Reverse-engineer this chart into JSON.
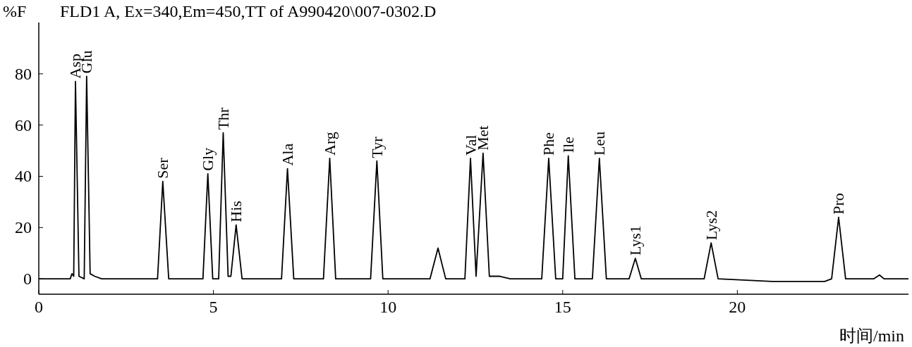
{
  "chart_data": {
    "type": "line",
    "title": "FLD1 A, Ex=340,Em=450,TT of A990420\\007-0302.D",
    "ylabel": "%F",
    "xlabel": "时间/min",
    "xlim": [
      0,
      24.9
    ],
    "ylim": [
      -6,
      100
    ],
    "xticks": [
      0,
      5,
      10,
      15,
      20
    ],
    "yticks": [
      0,
      20,
      40,
      60,
      80
    ],
    "series": [
      {
        "color": "#000000",
        "x": [
          0,
          0.9,
          0.95,
          1.0,
          1.05,
          1.15,
          1.3,
          1.37,
          1.47,
          1.6,
          1.8,
          3.4,
          3.55,
          3.72,
          4.7,
          4.84,
          4.98,
          5.15,
          5.28,
          5.42,
          5.5,
          5.65,
          5.82,
          6.95,
          7.12,
          7.3,
          8.15,
          8.33,
          8.5,
          9.5,
          9.68,
          9.85,
          11.2,
          11.43,
          11.65,
          12.2,
          12.36,
          12.52,
          12.72,
          12.9,
          13.2,
          13.5,
          14.4,
          14.6,
          14.8,
          15.0,
          15.16,
          15.35,
          15.85,
          16.05,
          16.25,
          16.9,
          17.08,
          17.25,
          19.05,
          19.25,
          19.45,
          21,
          22.5,
          22.7,
          22.9,
          23.1,
          23.9,
          24.07,
          24.2,
          24.9
        ],
        "values": [
          0,
          0,
          2,
          1,
          77,
          1,
          0,
          79,
          2,
          1,
          0,
          0,
          38,
          0,
          0,
          41,
          0,
          0,
          57,
          1,
          1,
          21,
          0,
          0,
          43,
          0,
          0,
          47,
          0,
          0,
          46,
          0,
          0,
          12,
          0,
          0,
          47,
          1,
          49,
          1,
          1,
          0,
          0,
          47,
          0,
          0,
          48,
          0,
          0,
          47,
          0,
          0,
          8,
          0,
          0,
          14,
          0,
          -1,
          -1,
          0,
          24,
          0,
          0,
          1.5,
          0,
          0
        ]
      }
    ],
    "annotations": [
      {
        "text": "Asp",
        "x": 1.05,
        "y": 77
      },
      {
        "text": "Glu",
        "x": 1.37,
        "y": 79
      },
      {
        "text": "Ser",
        "x": 3.55,
        "y": 38
      },
      {
        "text": "Gly",
        "x": 4.84,
        "y": 41
      },
      {
        "text": "Thr",
        "x": 5.28,
        "y": 57
      },
      {
        "text": "His",
        "x": 5.65,
        "y": 21
      },
      {
        "text": "Ala",
        "x": 7.12,
        "y": 43
      },
      {
        "text": "Arg",
        "x": 8.33,
        "y": 47
      },
      {
        "text": "Tyr",
        "x": 9.68,
        "y": 46
      },
      {
        "text": "Val",
        "x": 12.36,
        "y": 47
      },
      {
        "text": "Met",
        "x": 12.72,
        "y": 49
      },
      {
        "text": "Phe",
        "x": 14.6,
        "y": 47
      },
      {
        "text": "Ile",
        "x": 15.16,
        "y": 48
      },
      {
        "text": "Leu",
        "x": 16.05,
        "y": 47
      },
      {
        "text": "Lys1",
        "x": 17.08,
        "y": 8
      },
      {
        "text": "Lys2",
        "x": 19.25,
        "y": 14
      },
      {
        "text": "Pro",
        "x": 22.9,
        "y": 24
      }
    ]
  }
}
